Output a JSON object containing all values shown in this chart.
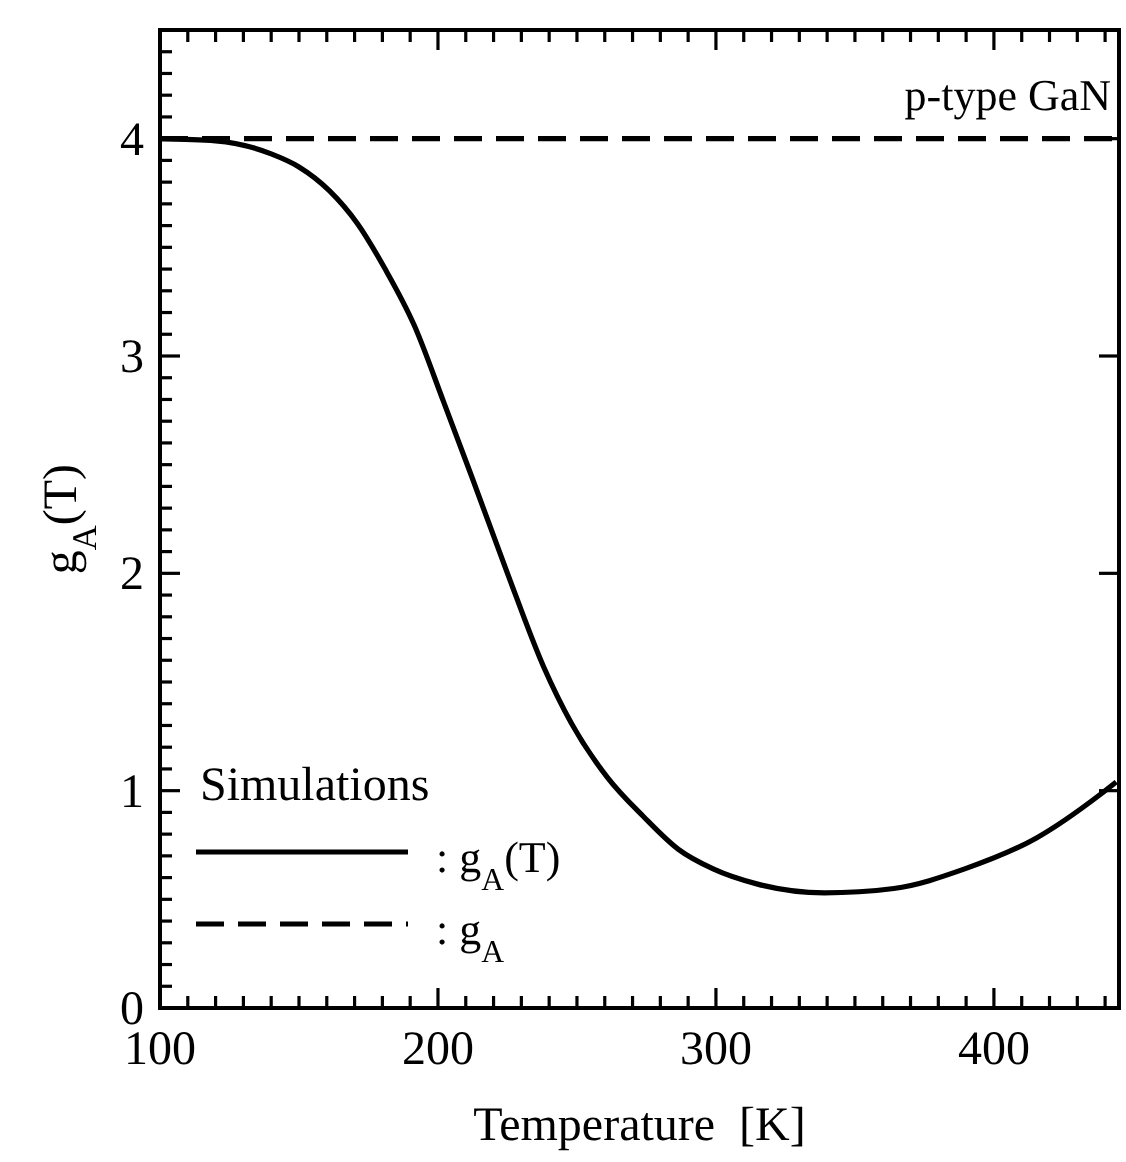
{
  "chart_data": {
    "type": "line",
    "xlabel": "Temperature  [K]",
    "ylabel": "g$_{A}$(T)",
    "legend_title": "Simulations",
    "legend": "bottom left",
    "annotations": [
      "p-type GaN"
    ],
    "xlim": [
      100,
      445
    ],
    "ylim": [
      0,
      4.5
    ],
    "xticks": [
      100,
      {
        "value": 110,
        "label": null
      },
      {
        "value": 120,
        "label": null
      },
      {
        "value": 130,
        "label": null
      },
      {
        "value": 140,
        "label": null
      },
      {
        "value": 150,
        "label": null
      },
      {
        "value": 160,
        "label": null
      },
      {
        "value": 170,
        "label": null
      },
      {
        "value": 180,
        "label": null
      },
      {
        "value": 190,
        "label": null
      },
      200,
      {
        "value": 210,
        "label": null
      },
      {
        "value": 220,
        "label": null
      },
      {
        "value": 230,
        "label": null
      },
      {
        "value": 240,
        "label": null
      },
      {
        "value": 250,
        "label": null
      },
      {
        "value": 260,
        "label": null
      },
      {
        "value": 270,
        "label": null
      },
      {
        "value": 280,
        "label": null
      },
      {
        "value": 290,
        "label": null
      },
      300,
      {
        "value": 310,
        "label": null
      },
      {
        "value": 320,
        "label": null
      },
      {
        "value": 330,
        "label": null
      },
      {
        "value": 340,
        "label": null
      },
      {
        "value": 350,
        "label": null
      },
      {
        "value": 360,
        "label": null
      },
      {
        "value": 370,
        "label": null
      },
      {
        "value": 380,
        "label": null
      },
      {
        "value": 390,
        "label": null
      },
      400,
      {
        "value": 410,
        "label": null
      },
      {
        "value": 420,
        "label": null
      },
      {
        "value": 430,
        "label": null
      },
      {
        "value": 440,
        "label": null
      }
    ],
    "yticks": [
      0,
      {
        "value": 0.1,
        "label": null
      },
      {
        "value": 0.2,
        "label": null
      },
      {
        "value": 0.3,
        "label": null
      },
      {
        "value": 0.4,
        "label": null
      },
      {
        "value": 0.5,
        "label": null
      },
      {
        "value": 0.6,
        "label": null
      },
      {
        "value": 0.7,
        "label": null
      },
      {
        "value": 0.8,
        "label": null
      },
      {
        "value": 0.9,
        "label": null
      },
      1,
      {
        "value": 1.1,
        "label": null
      },
      {
        "value": 1.2,
        "label": null
      },
      {
        "value": 1.3,
        "label": null
      },
      {
        "value": 1.4,
        "label": null
      },
      {
        "value": 1.5,
        "label": null
      },
      {
        "value": 1.6,
        "label": null
      },
      {
        "value": 1.7,
        "label": null
      },
      {
        "value": 1.8,
        "label": null
      },
      {
        "value": 1.9,
        "label": null
      },
      2,
      {
        "value": 2.1,
        "label": null
      },
      {
        "value": 2.2,
        "label": null
      },
      {
        "value": 2.3,
        "label": null
      },
      {
        "value": 2.4,
        "label": null
      },
      {
        "value": 2.5,
        "label": null
      },
      {
        "value": 2.6,
        "label": null
      },
      {
        "value": 2.7,
        "label": null
      },
      {
        "value": 2.8,
        "label": null
      },
      {
        "value": 2.9,
        "label": null
      },
      3,
      {
        "value": 3.1,
        "label": null
      },
      {
        "value": 3.2,
        "label": null
      },
      {
        "value": 3.3,
        "label": null
      },
      {
        "value": 3.4,
        "label": null
      },
      {
        "value": 3.5,
        "label": null
      },
      {
        "value": 3.6,
        "label": null
      },
      {
        "value": 3.7,
        "label": null
      },
      {
        "value": 3.8,
        "label": null
      },
      {
        "value": 3.9,
        "label": null
      },
      4,
      {
        "value": 4.1,
        "label": null
      },
      {
        "value": 4.2,
        "label": null
      },
      {
        "value": 4.3,
        "label": null
      },
      {
        "value": 4.4,
        "label": null
      }
    ],
    "series": [
      {
        "name": ": g$_{A}$(T)",
        "color": "#000000",
        "line_style": "solid",
        "x": [
          100,
          120,
          140,
          150,
          161,
          171,
          181,
          191.5,
          202,
          212,
          225,
          238,
          248,
          261,
          274,
          286.5,
          299,
          315,
          339,
          364,
          389.5,
          415,
          438,
          444
        ],
        "values": [
          4.0,
          3.99,
          3.93,
          3.87,
          3.76,
          3.61,
          3.4,
          3.14,
          2.79,
          2.45,
          2.0,
          1.57,
          1.31,
          1.06,
          0.88,
          0.73,
          0.64,
          0.57,
          0.53,
          0.55,
          0.64,
          0.78,
          0.98,
          1.04
        ]
      },
      {
        "name": ": g$_{A}$",
        "color": "#000000",
        "line_style": "dashed",
        "x": [
          100,
          445
        ],
        "values": [
          4,
          4
        ]
      }
    ]
  }
}
